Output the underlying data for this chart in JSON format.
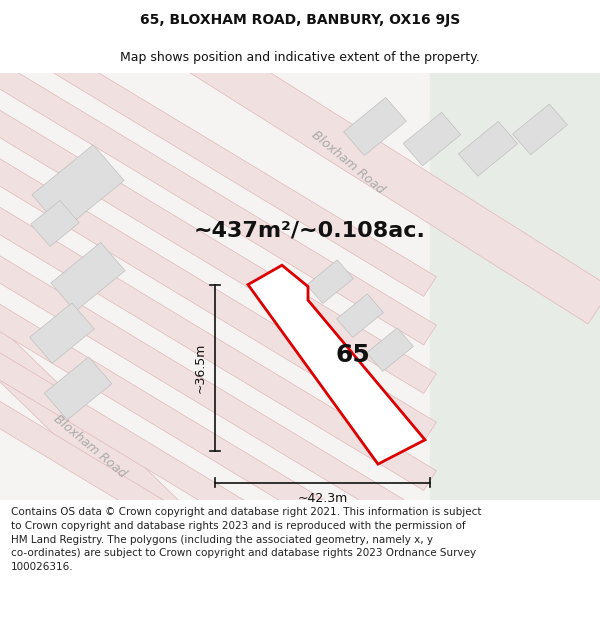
{
  "title": "65, BLOXHAM ROAD, BANBURY, OX16 9JS",
  "subtitle": "Map shows position and indicative extent of the property.",
  "footer": "Contains OS data © Crown copyright and database right 2021. This information is subject\nto Crown copyright and database rights 2023 and is reproduced with the permission of\nHM Land Registry. The polygons (including the associated geometry, namely x, y\nco-ordinates) are subject to Crown copyright and database rights 2023 Ordnance Survey\n100026316.",
  "area_label": "~437m²/~0.108ac.",
  "number_label": "65",
  "width_label": "~42.3m",
  "height_label": "~36.5m",
  "map_bg_main": "#f5f4f2",
  "map_bg_right": "#e8ece6",
  "road_fill": "#f0e0e0",
  "road_edge": "#e0b8b8",
  "building_fill": "#dedede",
  "building_edge": "#c0c0c0",
  "plot_edge": "#dd0000",
  "plot_fill": "#ffffff",
  "dim_color": "#111111",
  "label_color": "#111111",
  "road_label_color": "#aaaaaa",
  "footer_color": "#222222",
  "title_fontsize": 10,
  "subtitle_fontsize": 9,
  "footer_fontsize": 7.5,
  "area_fontsize": 16,
  "number_fontsize": 18,
  "dim_fontsize": 9,
  "road_label_fontsize": 9
}
